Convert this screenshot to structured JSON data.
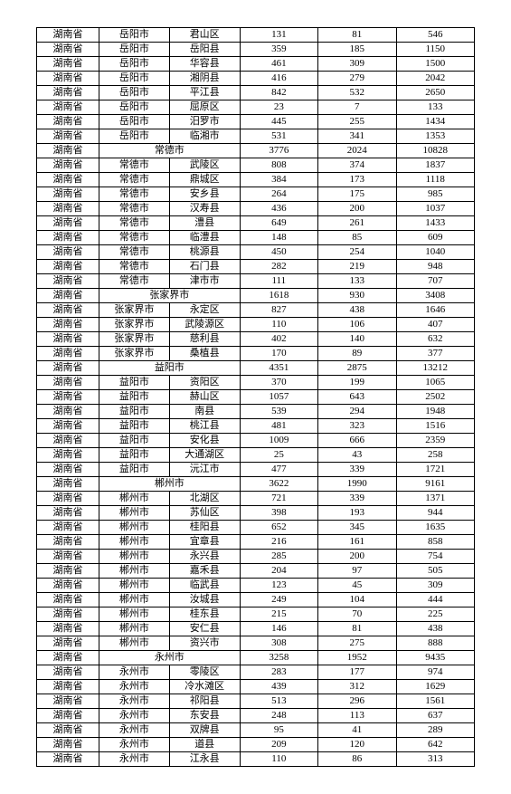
{
  "table": {
    "rows": [
      [
        "湖南省",
        "岳阳市",
        "君山区",
        "131",
        "81",
        "546"
      ],
      [
        "湖南省",
        "岳阳市",
        "岳阳县",
        "359",
        "185",
        "1150"
      ],
      [
        "湖南省",
        "岳阳市",
        "华容县",
        "461",
        "309",
        "1500"
      ],
      [
        "湖南省",
        "岳阳市",
        "湘阴县",
        "416",
        "279",
        "2042"
      ],
      [
        "湖南省",
        "岳阳市",
        "平江县",
        "842",
        "532",
        "2650"
      ],
      [
        "湖南省",
        "岳阳市",
        "屈原区",
        "23",
        "7",
        "133"
      ],
      [
        "湖南省",
        "岳阳市",
        "汨罗市",
        "445",
        "255",
        "1434"
      ],
      [
        "湖南省",
        "岳阳市",
        "临湘市",
        "531",
        "341",
        "1353"
      ],
      [
        "湖南省",
        "常德市",
        "",
        "3776",
        "2024",
        "10828"
      ],
      [
        "湖南省",
        "常德市",
        "武陵区",
        "808",
        "374",
        "1837"
      ],
      [
        "湖南省",
        "常德市",
        "鼎城区",
        "384",
        "173",
        "1118"
      ],
      [
        "湖南省",
        "常德市",
        "安乡县",
        "264",
        "175",
        "985"
      ],
      [
        "湖南省",
        "常德市",
        "汉寿县",
        "436",
        "200",
        "1037"
      ],
      [
        "湖南省",
        "常德市",
        "澧县",
        "649",
        "261",
        "1433"
      ],
      [
        "湖南省",
        "常德市",
        "临澧县",
        "148",
        "85",
        "609"
      ],
      [
        "湖南省",
        "常德市",
        "桃源县",
        "450",
        "254",
        "1040"
      ],
      [
        "湖南省",
        "常德市",
        "石门县",
        "282",
        "219",
        "948"
      ],
      [
        "湖南省",
        "常德市",
        "津市市",
        "111",
        "133",
        "707"
      ],
      [
        "湖南省",
        "张家界市",
        "",
        "1618",
        "930",
        "3408"
      ],
      [
        "湖南省",
        "张家界市",
        "永定区",
        "827",
        "438",
        "1646"
      ],
      [
        "湖南省",
        "张家界市",
        "武陵源区",
        "110",
        "106",
        "407"
      ],
      [
        "湖南省",
        "张家界市",
        "慈利县",
        "402",
        "140",
        "632"
      ],
      [
        "湖南省",
        "张家界市",
        "桑植县",
        "170",
        "89",
        "377"
      ],
      [
        "湖南省",
        "益阳市",
        "",
        "4351",
        "2875",
        "13212"
      ],
      [
        "湖南省",
        "益阳市",
        "资阳区",
        "370",
        "199",
        "1065"
      ],
      [
        "湖南省",
        "益阳市",
        "赫山区",
        "1057",
        "643",
        "2502"
      ],
      [
        "湖南省",
        "益阳市",
        "南县",
        "539",
        "294",
        "1948"
      ],
      [
        "湖南省",
        "益阳市",
        "桃江县",
        "481",
        "323",
        "1516"
      ],
      [
        "湖南省",
        "益阳市",
        "安化县",
        "1009",
        "666",
        "2359"
      ],
      [
        "湖南省",
        "益阳市",
        "大通湖区",
        "25",
        "43",
        "258"
      ],
      [
        "湖南省",
        "益阳市",
        "沅江市",
        "477",
        "339",
        "1721"
      ],
      [
        "湖南省",
        "郴州市",
        "",
        "3622",
        "1990",
        "9161"
      ],
      [
        "湖南省",
        "郴州市",
        "北湖区",
        "721",
        "339",
        "1371"
      ],
      [
        "湖南省",
        "郴州市",
        "苏仙区",
        "398",
        "193",
        "944"
      ],
      [
        "湖南省",
        "郴州市",
        "桂阳县",
        "652",
        "345",
        "1635"
      ],
      [
        "湖南省",
        "郴州市",
        "宜章县",
        "216",
        "161",
        "858"
      ],
      [
        "湖南省",
        "郴州市",
        "永兴县",
        "285",
        "200",
        "754"
      ],
      [
        "湖南省",
        "郴州市",
        "嘉禾县",
        "204",
        "97",
        "505"
      ],
      [
        "湖南省",
        "郴州市",
        "临武县",
        "123",
        "45",
        "309"
      ],
      [
        "湖南省",
        "郴州市",
        "汝城县",
        "249",
        "104",
        "444"
      ],
      [
        "湖南省",
        "郴州市",
        "桂东县",
        "215",
        "70",
        "225"
      ],
      [
        "湖南省",
        "郴州市",
        "安仁县",
        "146",
        "81",
        "438"
      ],
      [
        "湖南省",
        "郴州市",
        "资兴市",
        "308",
        "275",
        "888"
      ],
      [
        "湖南省",
        "永州市",
        "",
        "3258",
        "1952",
        "9435"
      ],
      [
        "湖南省",
        "永州市",
        "零陵区",
        "283",
        "177",
        "974"
      ],
      [
        "湖南省",
        "永州市",
        "冷水滩区",
        "439",
        "312",
        "1629"
      ],
      [
        "湖南省",
        "永州市",
        "祁阳县",
        "513",
        "296",
        "1561"
      ],
      [
        "湖南省",
        "永州市",
        "东安县",
        "248",
        "113",
        "637"
      ],
      [
        "湖南省",
        "永州市",
        "双牌县",
        "95",
        "41",
        "289"
      ],
      [
        "湖南省",
        "永州市",
        "道县",
        "209",
        "120",
        "642"
      ],
      [
        "湖南省",
        "永州市",
        "江永县",
        "110",
        "86",
        "313"
      ]
    ],
    "summary_rows": [
      8,
      18,
      23,
      31,
      43
    ],
    "col_classes": [
      "c1",
      "c2",
      "c3",
      "c4",
      "c5",
      "c6"
    ]
  }
}
